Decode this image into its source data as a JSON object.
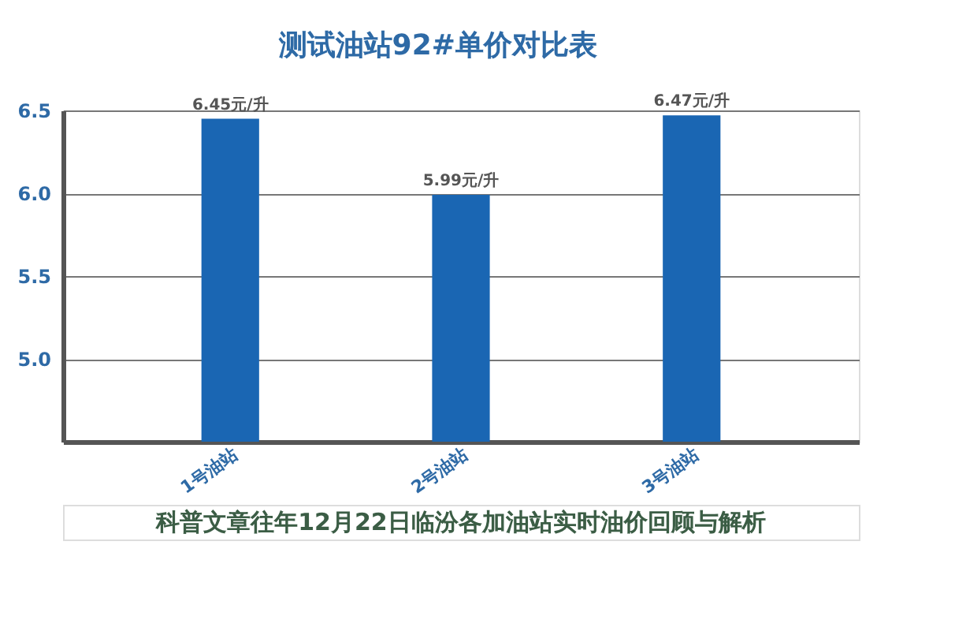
{
  "chart_data": {
    "type": "bar",
    "title": "测试油站92#单价对比表",
    "categories": [
      "1号油站",
      "2号油站",
      "3号油站"
    ],
    "values": [
      6.45,
      5.99,
      6.47
    ],
    "value_labels": [
      "6.45元/升",
      "5.99元/升",
      "6.47元/升"
    ],
    "color": "#1a66b3",
    "ylim": [
      4.5,
      6.5
    ],
    "yticks": [
      {
        "value": 5,
        "label": "5.0"
      },
      {
        "value": 5.5,
        "label": "5.5"
      },
      {
        "value": 6,
        "label": "6.0"
      },
      {
        "value": 6.5,
        "label": "6.5"
      }
    ],
    "grid": "y",
    "annotations": [
      "科普文章往年12月22日临汾各加油站实时油价回顾与解析"
    ]
  }
}
